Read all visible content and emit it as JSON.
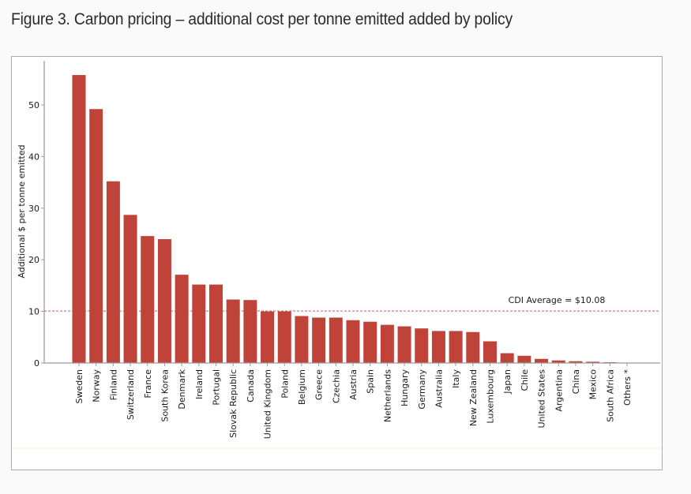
{
  "figure": {
    "title": "Figure 3. Carbon pricing – additional cost per tonne emitted added by policy"
  },
  "colors": {
    "bar": "#c0433a",
    "average_line": "#c0433a",
    "axis": "#9a9a9a",
    "frame": "#b0aa9f"
  },
  "chart_data": {
    "type": "bar",
    "title": "",
    "xlabel": "",
    "ylabel": "Additional $ per tonne emitted",
    "ylim": [
      0,
      58
    ],
    "yticks": [
      0,
      10,
      20,
      30,
      40,
      50
    ],
    "grid": false,
    "legend": null,
    "categories": [
      "Sweden",
      "Norway",
      "Finland",
      "Switzerland",
      "France",
      "South Korea",
      "Denmark",
      "Ireland",
      "Portugal",
      "Slovak Republic",
      "Canada",
      "United Kingdom",
      "Poland",
      "Belgium",
      "Greece",
      "Czechia",
      "Austria",
      "Spain",
      "Netherlands",
      "Hungary",
      "Germany",
      "Australia",
      "Italy",
      "New Zealand",
      "Luxembourg",
      "Japan",
      "Chile",
      "United States",
      "Argentina",
      "China",
      "Mexico",
      "South Africa",
      "Others *"
    ],
    "values": [
      55.8,
      49.2,
      35.2,
      28.7,
      24.6,
      24.0,
      17.1,
      15.2,
      15.2,
      12.3,
      12.2,
      10.0,
      10.0,
      9.1,
      8.8,
      8.8,
      8.3,
      8.0,
      7.4,
      7.1,
      6.7,
      6.2,
      6.2,
      6.0,
      4.2,
      1.9,
      1.4,
      0.8,
      0.5,
      0.35,
      0.25,
      0.15,
      0.0
    ],
    "reference_line": {
      "value": 10.08,
      "style": "dashed",
      "label": "CDI Average = $10.08"
    }
  }
}
